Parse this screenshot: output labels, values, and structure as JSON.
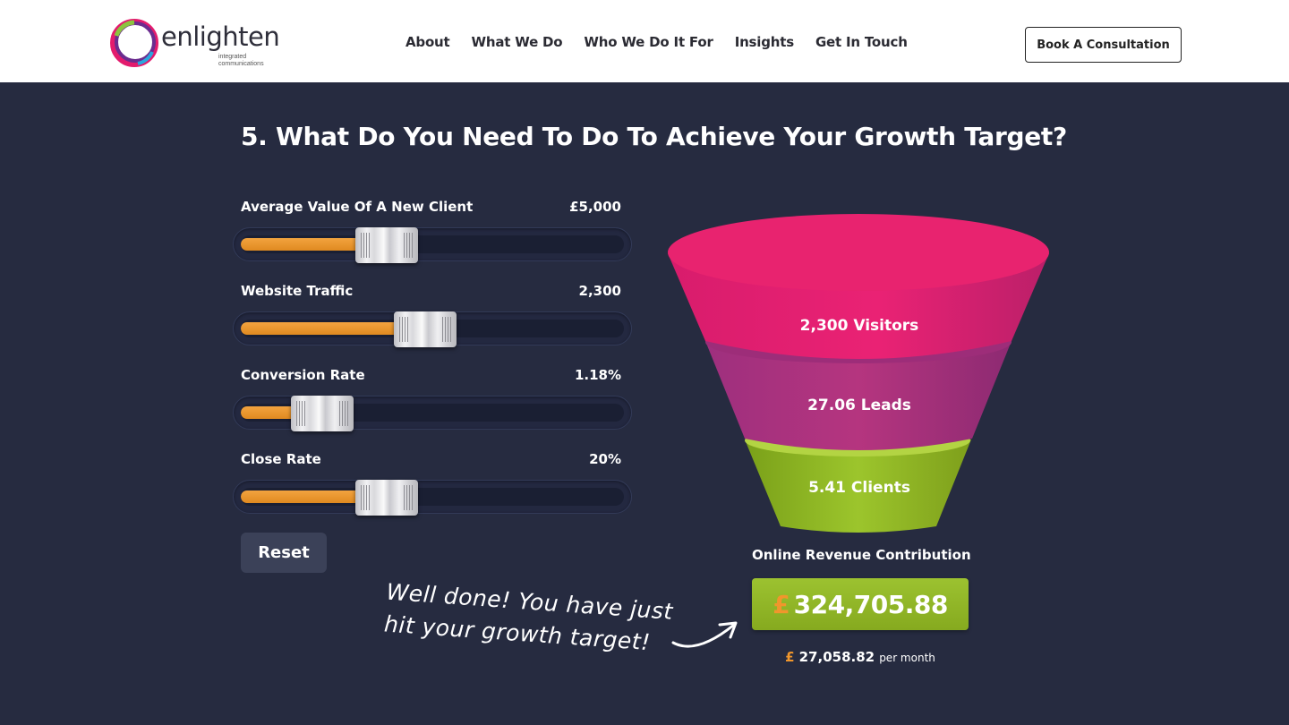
{
  "brand": {
    "name": "enlighten",
    "tagline": "integrated communications"
  },
  "nav": {
    "items": [
      "About",
      "What We Do",
      "Who We Do It For",
      "Insights",
      "Get In Touch"
    ],
    "cta_label": "Book A Consultation"
  },
  "heading": "5. What Do You Need To Do To Achieve Your Growth Target?",
  "sliders": [
    {
      "label": "Average Value Of A New Client",
      "value": "£5,000",
      "level": 0.3
    },
    {
      "label": "Website Traffic",
      "value": "2,300",
      "level": 0.4
    },
    {
      "label": "Conversion Rate",
      "value": "1.18%",
      "level": 0.13
    },
    {
      "label": "Close Rate",
      "value": "20%",
      "level": 0.3
    }
  ],
  "reset_label": "Reset",
  "funnel": {
    "visitors": "2,300 Visitors",
    "leads": "27.06 Leads",
    "clients": "5.41 Clients"
  },
  "message": "Well done! You have just hit your growth target!",
  "revenue": {
    "title": "Online Revenue Contribution",
    "currency": "£",
    "amount": "324,705.88",
    "monthly_currency": "£",
    "monthly_amount": "27,058.82",
    "monthly_suffix": "per month"
  },
  "colors": {
    "background": "#262b40",
    "accent_orange": "#f0962c",
    "funnel_pink": "#e71f73",
    "funnel_purple": "#b23284",
    "funnel_green": "#8fb522"
  },
  "icons": {
    "logo": "enlighten-ring-logo",
    "arrow": "hand-drawn-arrow-icon"
  }
}
